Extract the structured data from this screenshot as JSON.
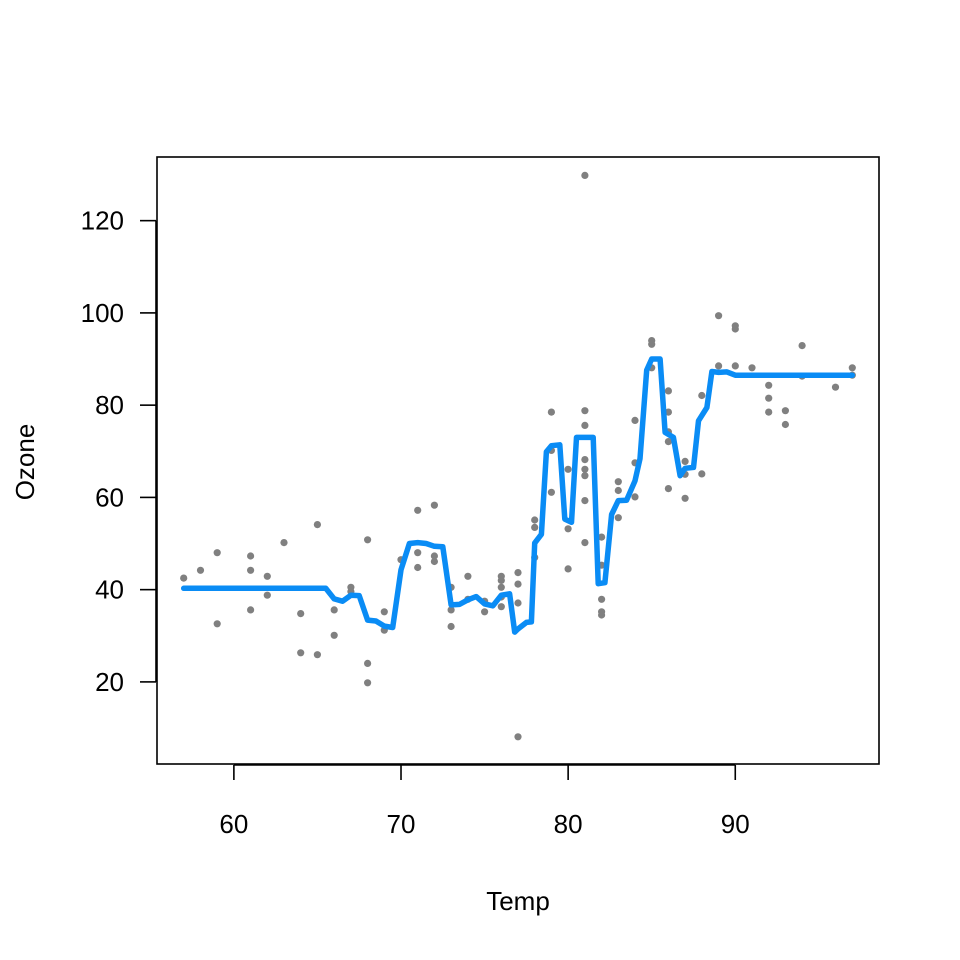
{
  "chart_data": {
    "type": "scatter",
    "title": "",
    "xlabel": "Temp",
    "ylabel": "Ozone",
    "xlim": [
      55.4,
      98.6
    ],
    "ylim": [
      2.2,
      133.8
    ],
    "xticks": [
      60,
      70,
      80,
      90
    ],
    "yticks": [
      20,
      40,
      60,
      80,
      100,
      120
    ],
    "grid": false,
    "legend": "none",
    "colors": {
      "points": "#808080",
      "line": "#0a8cf5",
      "axis": "#000000"
    },
    "series": [
      {
        "type": "scatter",
        "points": [
          [
            57,
            42.5
          ],
          [
            58,
            44.2
          ],
          [
            59,
            48.0
          ],
          [
            59,
            32.6
          ],
          [
            61,
            47.3
          ],
          [
            61,
            44.2
          ],
          [
            61,
            35.6
          ],
          [
            62,
            42.9
          ],
          [
            62,
            38.8
          ],
          [
            63,
            50.2
          ],
          [
            64,
            34.8
          ],
          [
            64,
            26.3
          ],
          [
            65,
            54.1
          ],
          [
            65,
            25.9
          ],
          [
            66,
            35.6
          ],
          [
            66,
            30.1
          ],
          [
            67,
            40.5
          ],
          [
            67,
            39.6
          ],
          [
            68,
            50.8
          ],
          [
            68,
            24.0
          ],
          [
            68,
            19.8
          ],
          [
            69,
            35.2
          ],
          [
            69,
            31.2
          ],
          [
            70,
            46.5
          ],
          [
            71,
            57.2
          ],
          [
            71,
            48.0
          ],
          [
            71,
            44.8
          ],
          [
            72,
            58.3
          ],
          [
            72,
            47.3
          ],
          [
            72,
            46.1
          ],
          [
            73,
            40.5
          ],
          [
            73,
            35.6
          ],
          [
            73,
            32.0
          ],
          [
            74,
            42.9
          ],
          [
            74,
            37.9
          ],
          [
            75,
            37.5
          ],
          [
            75,
            35.2
          ],
          [
            76,
            42.9
          ],
          [
            76,
            42.0
          ],
          [
            76,
            40.5
          ],
          [
            76,
            38.4
          ],
          [
            76,
            36.3
          ],
          [
            77,
            43.7
          ],
          [
            77,
            41.2
          ],
          [
            77,
            37.1
          ],
          [
            77,
            8.1
          ],
          [
            78,
            55.1
          ],
          [
            78,
            53.5
          ],
          [
            78,
            47.0
          ],
          [
            79,
            78.5
          ],
          [
            79,
            70.2
          ],
          [
            79,
            61.1
          ],
          [
            80,
            66.1
          ],
          [
            80,
            53.2
          ],
          [
            80,
            44.5
          ],
          [
            81,
            129.8
          ],
          [
            81,
            78.8
          ],
          [
            81,
            75.6
          ],
          [
            81,
            68.2
          ],
          [
            81,
            66.1
          ],
          [
            81,
            64.7
          ],
          [
            81,
            59.3
          ],
          [
            81,
            50.2
          ],
          [
            82,
            51.4
          ],
          [
            82,
            45.3
          ],
          [
            82,
            37.9
          ],
          [
            82,
            35.2
          ],
          [
            82,
            34.5
          ],
          [
            83,
            63.4
          ],
          [
            83,
            61.5
          ],
          [
            83,
            55.6
          ],
          [
            84,
            76.7
          ],
          [
            84,
            67.5
          ],
          [
            84,
            60.1
          ],
          [
            85,
            94.0
          ],
          [
            85,
            93.2
          ],
          [
            85,
            88.1
          ],
          [
            86,
            83.1
          ],
          [
            86,
            78.5
          ],
          [
            86,
            74.2
          ],
          [
            86,
            72.1
          ],
          [
            86,
            61.9
          ],
          [
            87,
            67.8
          ],
          [
            87,
            65.0
          ],
          [
            87,
            59.8
          ],
          [
            88,
            82.1
          ],
          [
            88,
            65.1
          ],
          [
            89,
            99.4
          ],
          [
            89,
            88.5
          ],
          [
            90,
            97.2
          ],
          [
            90,
            96.5
          ],
          [
            90,
            88.5
          ],
          [
            91,
            88.1
          ],
          [
            92,
            84.3
          ],
          [
            92,
            81.5
          ],
          [
            92,
            78.5
          ],
          [
            93,
            78.8
          ],
          [
            93,
            75.8
          ],
          [
            94,
            92.9
          ],
          [
            94,
            86.3
          ],
          [
            96,
            83.9
          ],
          [
            97,
            88.1
          ],
          [
            97,
            86.5
          ]
        ]
      },
      {
        "type": "line",
        "points": [
          [
            57,
            40.3
          ],
          [
            65.5,
            40.3
          ],
          [
            66,
            38.0
          ],
          [
            66.5,
            37.5
          ],
          [
            67,
            38.8
          ],
          [
            67.5,
            38.7
          ],
          [
            68,
            33.4
          ],
          [
            68.5,
            33.2
          ],
          [
            69,
            32.1
          ],
          [
            69.5,
            31.8
          ],
          [
            70,
            44.3
          ],
          [
            70.5,
            50.0
          ],
          [
            71,
            50.2
          ],
          [
            71.5,
            50.0
          ],
          [
            72,
            49.4
          ],
          [
            72.5,
            49.3
          ],
          [
            73,
            36.7
          ],
          [
            73.5,
            36.8
          ],
          [
            74,
            37.8
          ],
          [
            74.5,
            38.5
          ],
          [
            75,
            36.9
          ],
          [
            75.5,
            36.5
          ],
          [
            76,
            38.8
          ],
          [
            76.5,
            39.1
          ],
          [
            76.8,
            30.8
          ],
          [
            77,
            31.5
          ],
          [
            77.5,
            32.9
          ],
          [
            77.8,
            33.0
          ],
          [
            78,
            50.1
          ],
          [
            78.4,
            52.0
          ],
          [
            78.7,
            69.9
          ],
          [
            79,
            71.2
          ],
          [
            79.5,
            71.4
          ],
          [
            79.8,
            55.3
          ],
          [
            80.2,
            54.6
          ],
          [
            80.5,
            73.0
          ],
          [
            81,
            73.0
          ],
          [
            81.5,
            73.0
          ],
          [
            81.8,
            41.3
          ],
          [
            82.2,
            41.5
          ],
          [
            82.6,
            56.3
          ],
          [
            83,
            59.3
          ],
          [
            83.5,
            59.4
          ],
          [
            84,
            63.6
          ],
          [
            84.3,
            68.4
          ],
          [
            84.7,
            87.6
          ],
          [
            85,
            90.0
          ],
          [
            85.5,
            90.0
          ],
          [
            85.8,
            74.1
          ],
          [
            86.3,
            73.0
          ],
          [
            86.7,
            64.7
          ],
          [
            87,
            66.3
          ],
          [
            87.5,
            66.5
          ],
          [
            87.8,
            76.6
          ],
          [
            88.3,
            79.5
          ],
          [
            88.6,
            87.3
          ],
          [
            89,
            87.1
          ],
          [
            89.5,
            87.2
          ],
          [
            90,
            86.5
          ],
          [
            97,
            86.5
          ]
        ]
      }
    ]
  }
}
